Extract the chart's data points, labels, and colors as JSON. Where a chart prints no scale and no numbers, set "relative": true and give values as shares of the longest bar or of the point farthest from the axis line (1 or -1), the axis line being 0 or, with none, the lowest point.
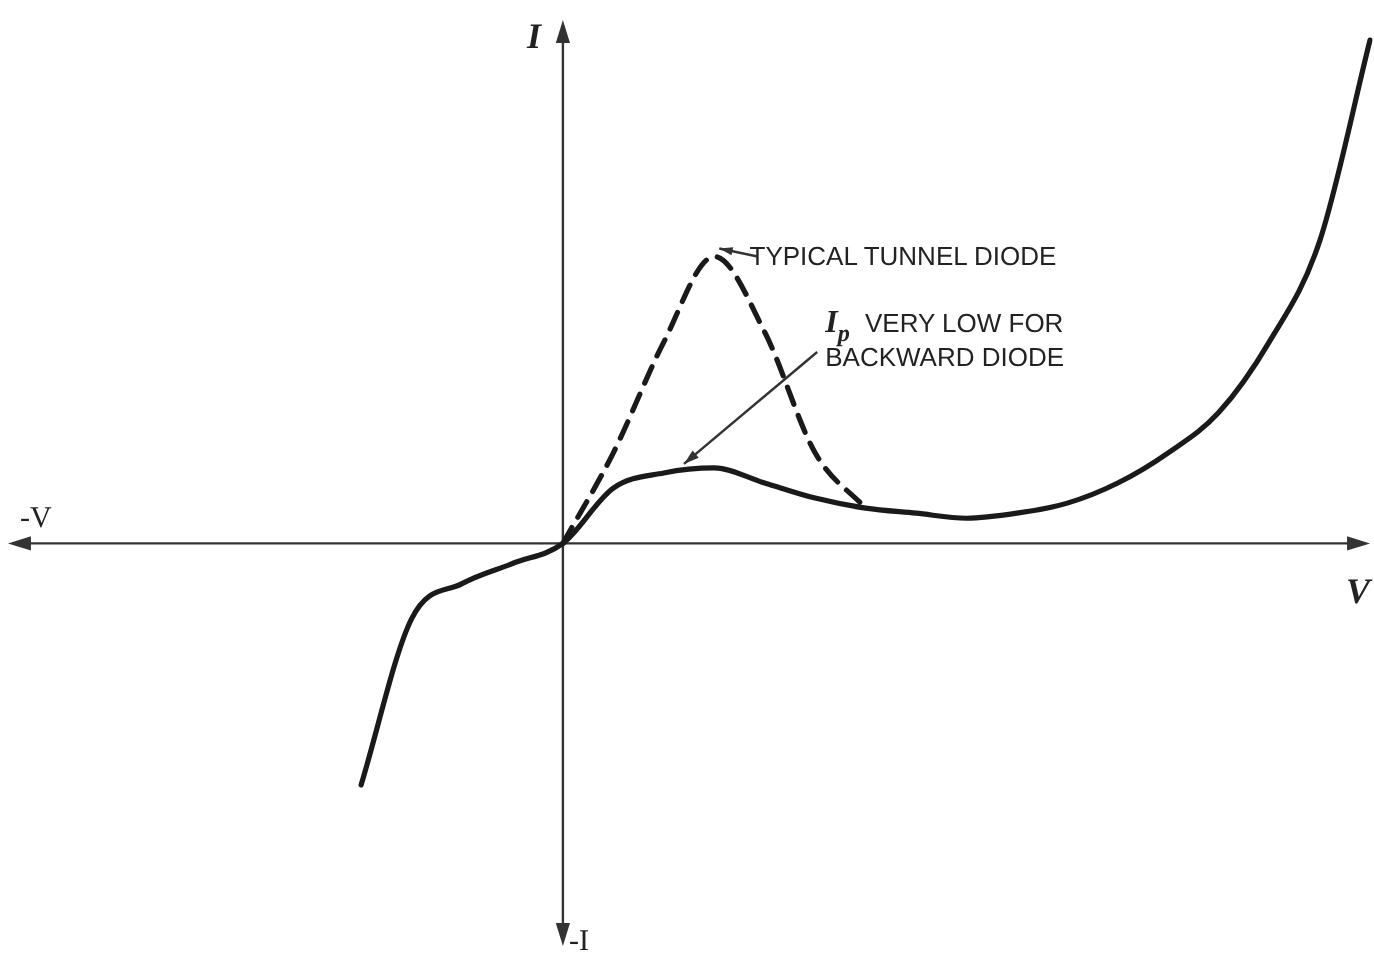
{
  "chart_data": {
    "type": "line",
    "relative": true,
    "xlabel": "V",
    "ylabel": "I",
    "categories": [
      null,
      null,
      null,
      null,
      null,
      null,
      null,
      null,
      null,
      null,
      null,
      null,
      null,
      null,
      null,
      null,
      null,
      null,
      null,
      null,
      null,
      null,
      null,
      null,
      null,
      null,
      null,
      null
    ],
    "series": [
      {
        "color": "#1a1a1a",
        "line_style": "solid",
        "values": [
          null,
          null,
          null,
          null,
          null,
          null,
          null,
          -0.48,
          -0.15,
          -0.08,
          -0.04,
          0,
          0.11,
          0.14,
          0.15,
          0.12,
          0.09,
          0.07,
          0.06,
          0.05,
          0.06,
          0.08,
          0.12,
          0.18,
          0.26,
          0.4,
          0.6,
          1.0
        ]
      },
      {
        "color": "#1a1a1a",
        "line_style": "dashed",
        "values": [
          null,
          null,
          null,
          null,
          null,
          null,
          null,
          null,
          null,
          null,
          null,
          0,
          0.18,
          0.4,
          0.57,
          0.42,
          0.18,
          0.07,
          null,
          null,
          null,
          null,
          null,
          null,
          null,
          null,
          null,
          null
        ]
      }
    ],
    "annotations": [
      "-V",
      "-I",
      "TYPICAL TUNNEL DIODE",
      "I$_{p}$ VERY LOW FOR BACKWARD DIODE"
    ],
    "legend": false,
    "marker": "none",
    "tick_labels": false
  }
}
